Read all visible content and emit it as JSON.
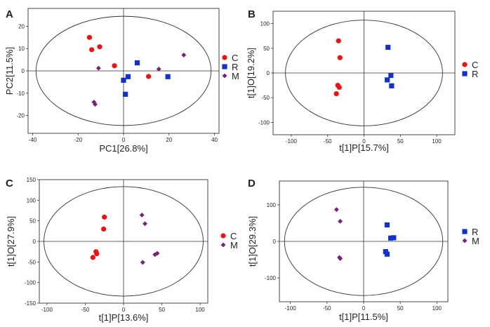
{
  "chart_data": [
    {
      "type": "scatter",
      "panel_label": "A",
      "xlabel": "PC1[26.8%]",
      "ylabel": "PC2[11.5%]",
      "xlim": [
        -42,
        42
      ],
      "ylim": [
        -28,
        28
      ],
      "xticks": [
        -40,
        -20,
        0,
        20,
        40
      ],
      "yticks": [
        -20,
        -10,
        0,
        10,
        20
      ],
      "ellipse": {
        "rx": 38.5,
        "ry": 24.5
      },
      "legend": [
        "C",
        "R",
        "M"
      ],
      "series": [
        {
          "name": "C",
          "marker": "circle",
          "color": "#ee1111",
          "points": [
            [
              -15,
              15
            ],
            [
              -14,
              9.5
            ],
            [
              -10.5,
              10.8
            ],
            [
              -4,
              2.3
            ],
            [
              11,
              -2.5
            ]
          ]
        },
        {
          "name": "R",
          "marker": "square",
          "color": "#1133cc",
          "points": [
            [
              6,
              3.6
            ],
            [
              2,
              -2.6
            ],
            [
              0,
              -4.2
            ],
            [
              0.8,
              -10.5
            ],
            [
              19.5,
              -2.6
            ]
          ]
        },
        {
          "name": "M",
          "marker": "diamond",
          "color": "#7a1f7a",
          "points": [
            [
              -11,
              1.2
            ],
            [
              -13,
              -14
            ],
            [
              -12.5,
              -15
            ],
            [
              15.5,
              0.8
            ],
            [
              26.5,
              7.1
            ]
          ]
        }
      ]
    },
    {
      "type": "scatter",
      "panel_label": "B",
      "xlabel": "t[1]P[15.7%]",
      "ylabel": "t[1]O[19.2%]",
      "xlim": [
        -125,
        125
      ],
      "ylim": [
        -125,
        125
      ],
      "xticks": [
        -100,
        -50,
        0,
        50,
        100
      ],
      "yticks": [
        -100,
        -50,
        0,
        50,
        100
      ],
      "ellipse": {
        "rx": 108,
        "ry": 107
      },
      "legend": [
        "C",
        "R"
      ],
      "series": [
        {
          "name": "C",
          "marker": "circle",
          "color": "#ee1111",
          "points": [
            [
              -35,
              65
            ],
            [
              -33,
              31
            ],
            [
              -36,
              -25
            ],
            [
              -34,
              -29
            ],
            [
              -38,
              -42
            ]
          ]
        },
        {
          "name": "R",
          "marker": "square",
          "color": "#1133cc",
          "points": [
            [
              33,
              52
            ],
            [
              37,
              -5
            ],
            [
              32,
              -14
            ],
            [
              38,
              -26
            ]
          ]
        }
      ]
    },
    {
      "type": "scatter",
      "panel_label": "C",
      "xlabel": "t[1]P[13.6%]",
      "ylabel": "t[1]O[27.9%]",
      "xlim": [
        -110,
        110
      ],
      "ylim": [
        -150,
        150
      ],
      "xticks": [
        -100,
        -50,
        0,
        50,
        100
      ],
      "yticks": [
        -150,
        -100,
        -50,
        0,
        50,
        100,
        150
      ],
      "ellipse": {
        "rx": 104,
        "ry": 133
      },
      "legend": [
        "C",
        "M"
      ],
      "series": [
        {
          "name": "C",
          "marker": "circle",
          "color": "#ee1111",
          "points": [
            [
              -25,
              59
            ],
            [
              -26,
              30
            ],
            [
              -36,
              -25
            ],
            [
              -35,
              -30
            ],
            [
              -40,
              -39
            ]
          ]
        },
        {
          "name": "M",
          "marker": "diamond",
          "color": "#7a1f7a",
          "points": [
            [
              24,
              64
            ],
            [
              28,
              43
            ],
            [
              44,
              -29
            ],
            [
              41,
              -32
            ],
            [
              25,
              -51
            ]
          ]
        }
      ]
    },
    {
      "type": "scatter",
      "panel_label": "D",
      "xlabel": "t[1]P[11.5%]",
      "ylabel": "t[1]O[29.3%]",
      "xlim": [
        -115,
        115
      ],
      "ylim": [
        -165,
        165
      ],
      "xticks": [
        -100,
        -50,
        0,
        50,
        100
      ],
      "yticks": [
        -100,
        0,
        100
      ],
      "ellipse": {
        "rx": 108,
        "ry": 148
      },
      "legend": [
        "R",
        "M"
      ],
      "series": [
        {
          "name": "R",
          "marker": "square",
          "color": "#1133cc",
          "points": [
            [
              32,
              45
            ],
            [
              37,
              9
            ],
            [
              41,
              10
            ],
            [
              30,
              -28
            ],
            [
              32,
              -35
            ]
          ]
        },
        {
          "name": "M",
          "marker": "diamond",
          "color": "#7a1f7a",
          "points": [
            [
              -37,
              87
            ],
            [
              -32,
              55
            ],
            [
              -33,
              -44
            ],
            [
              -32,
              -47
            ]
          ]
        }
      ]
    }
  ]
}
